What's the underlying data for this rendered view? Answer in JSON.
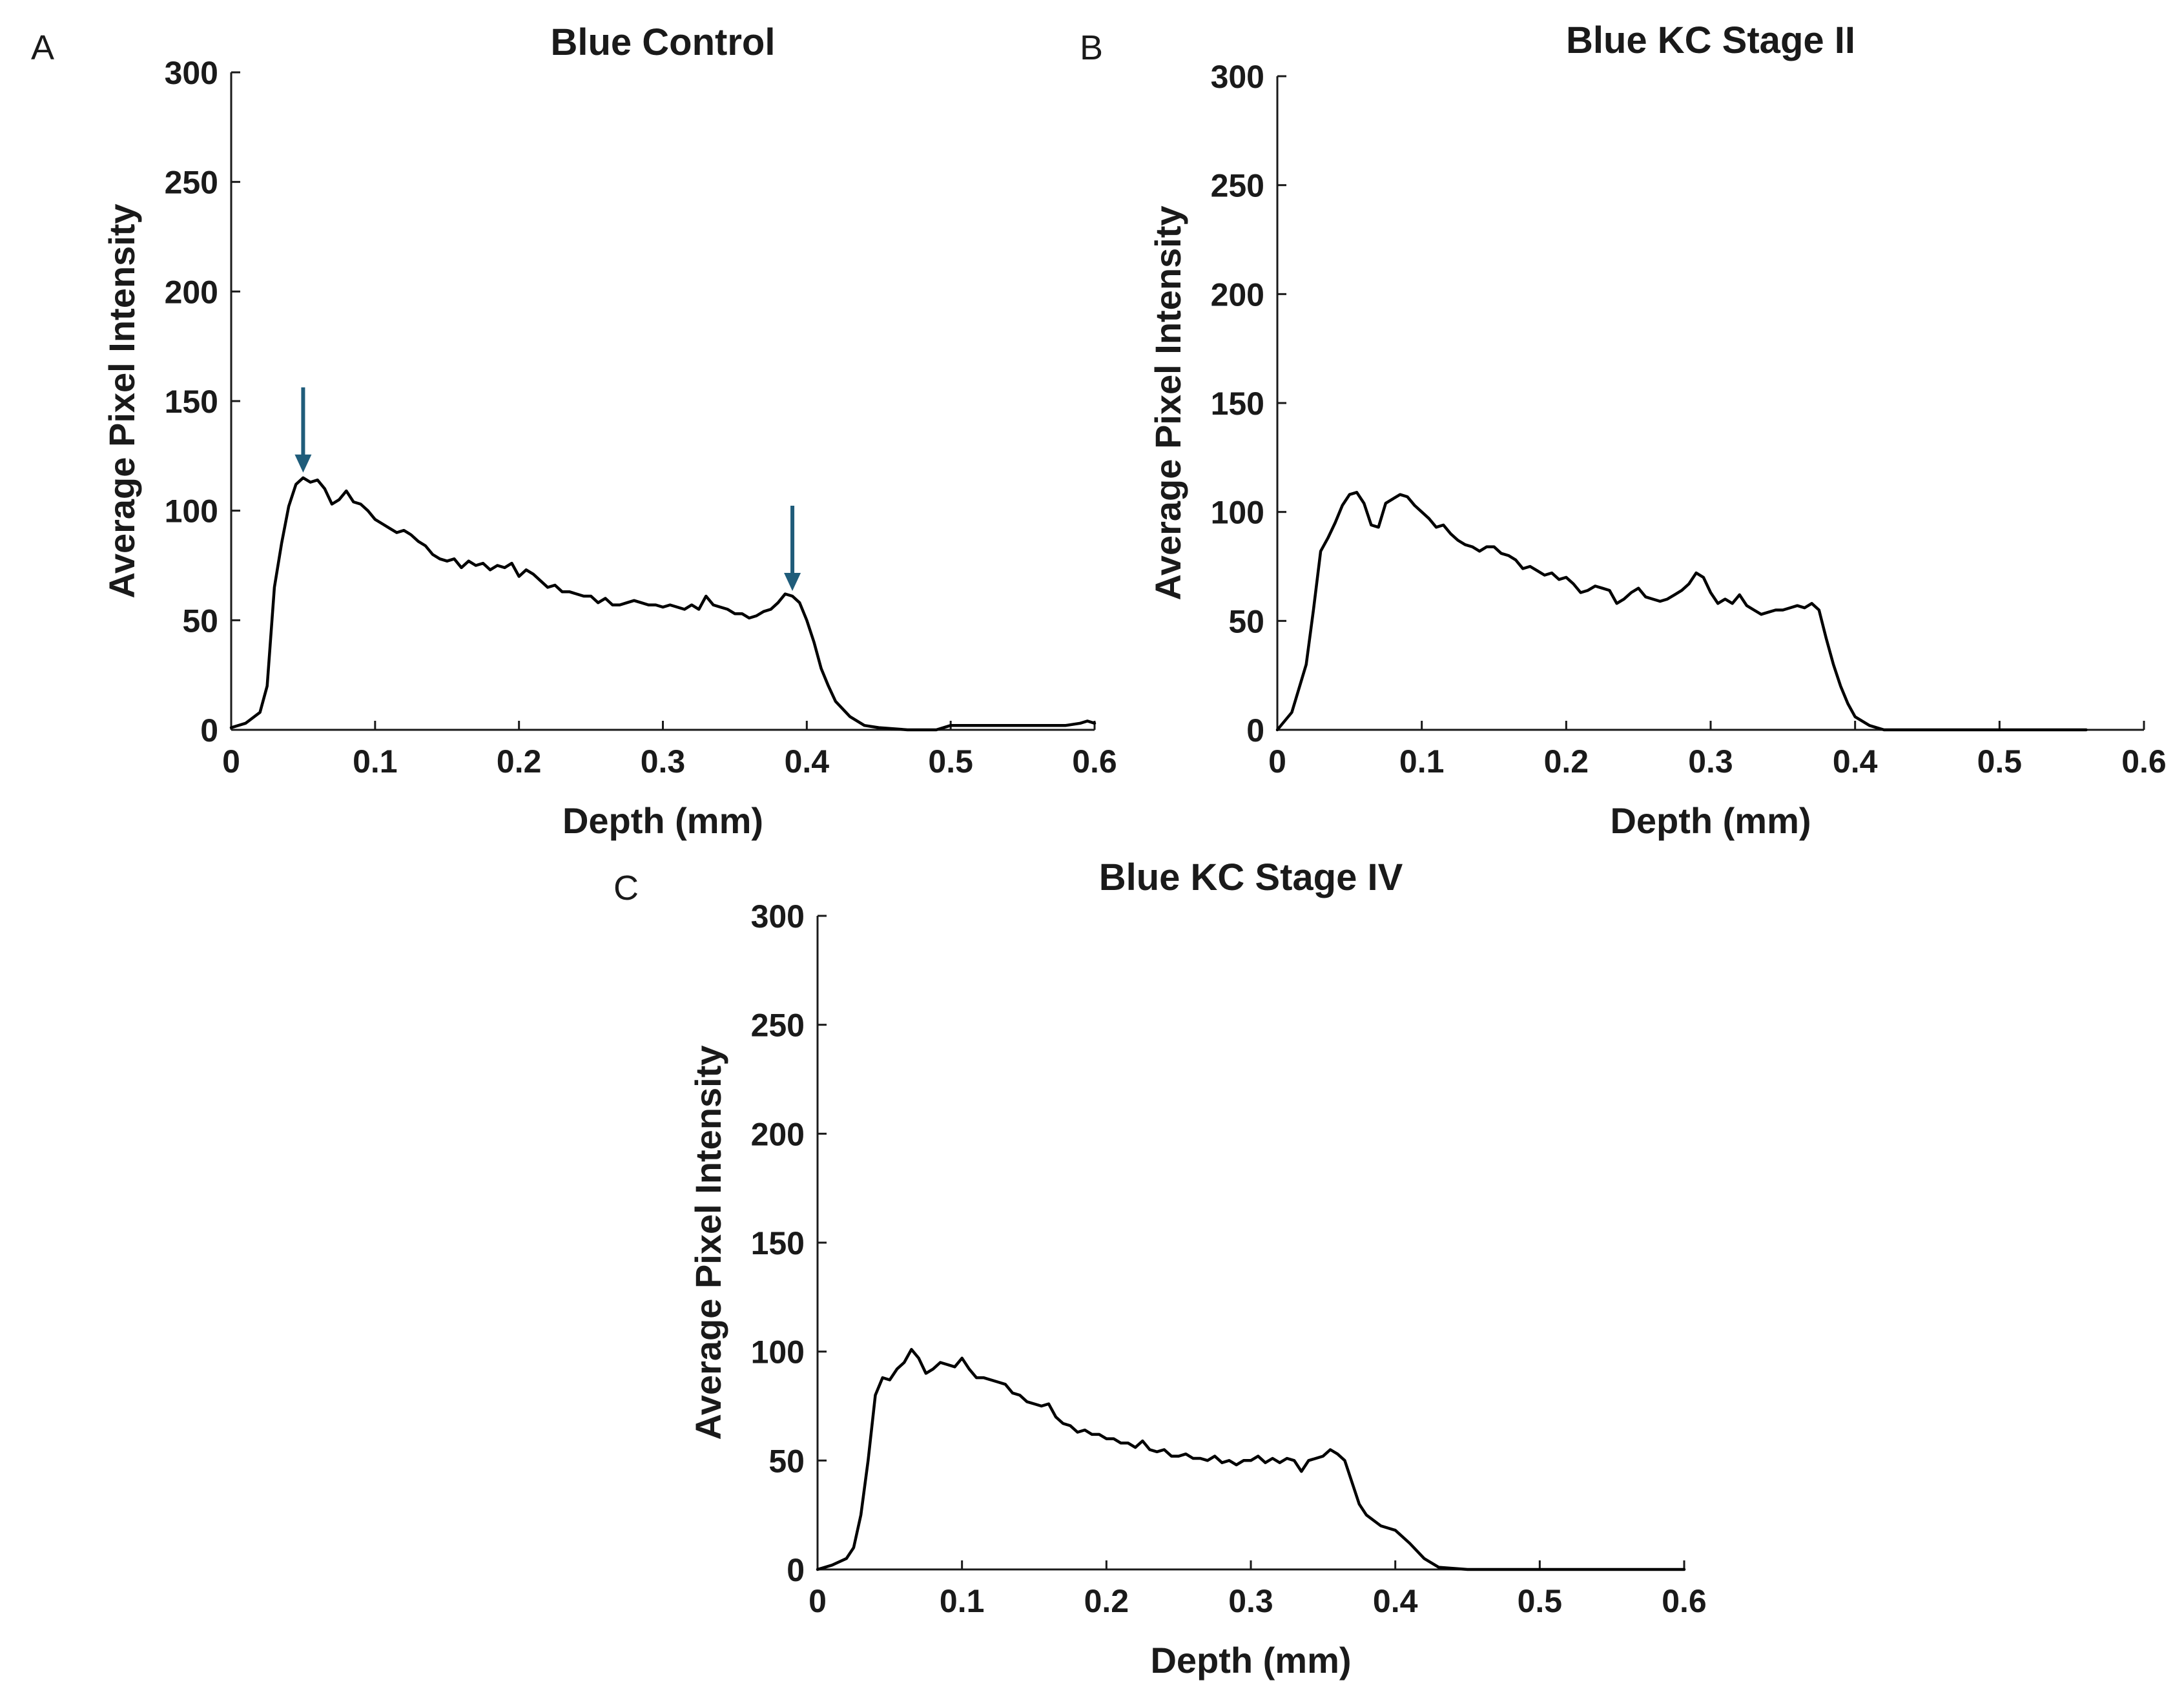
{
  "chart_data": [
    {
      "type": "line",
      "panel": "A",
      "title": "Blue Control",
      "xlabel": "Depth (mm)",
      "ylabel": "Average Pixel Intensity",
      "xlim": [
        0,
        0.6
      ],
      "ylim": [
        0,
        300
      ],
      "xticks": [
        "0",
        "0.1",
        "0.2",
        "0.3",
        "0.4",
        "0.5",
        "0.6"
      ],
      "yticks": [
        "0",
        "50",
        "100",
        "150",
        "200",
        "250",
        "300"
      ],
      "grid": false,
      "annotations": [
        {
          "type": "arrow",
          "x": 0.05,
          "y": 115,
          "color": "#1f5c7a"
        },
        {
          "type": "arrow",
          "x": 0.39,
          "y": 61,
          "color": "#1f5c7a"
        }
      ],
      "series": [
        {
          "x": [
            0,
            0.01,
            0.02,
            0.025,
            0.03,
            0.035,
            0.04,
            0.045,
            0.05,
            0.055,
            0.06,
            0.065,
            0.07,
            0.075,
            0.08,
            0.085,
            0.09,
            0.095,
            0.1,
            0.105,
            0.11,
            0.115,
            0.12,
            0.125,
            0.13,
            0.135,
            0.14,
            0.145,
            0.15,
            0.155,
            0.16,
            0.165,
            0.17,
            0.175,
            0.18,
            0.185,
            0.19,
            0.195,
            0.2,
            0.205,
            0.21,
            0.215,
            0.22,
            0.225,
            0.23,
            0.235,
            0.24,
            0.245,
            0.25,
            0.255,
            0.26,
            0.265,
            0.27,
            0.275,
            0.28,
            0.285,
            0.29,
            0.295,
            0.3,
            0.305,
            0.31,
            0.315,
            0.32,
            0.325,
            0.33,
            0.335,
            0.34,
            0.345,
            0.35,
            0.355,
            0.36,
            0.365,
            0.37,
            0.375,
            0.38,
            0.385,
            0.39,
            0.395,
            0.4,
            0.405,
            0.41,
            0.415,
            0.42,
            0.43,
            0.44,
            0.45,
            0.47,
            0.49,
            0.5,
            0.52,
            0.55,
            0.58,
            0.59,
            0.595,
            0.6
          ],
          "y": [
            1,
            3,
            8,
            20,
            65,
            85,
            102,
            112,
            115,
            113,
            114,
            110,
            103,
            105,
            109,
            104,
            103,
            100,
            96,
            94,
            92,
            90,
            91,
            89,
            86,
            84,
            80,
            78,
            77,
            78,
            74,
            77,
            75,
            76,
            73,
            75,
            74,
            76,
            70,
            73,
            71,
            68,
            65,
            66,
            63,
            63,
            62,
            61,
            61,
            58,
            60,
            57,
            57,
            58,
            59,
            58,
            57,
            57,
            56,
            57,
            56,
            55,
            57,
            55,
            61,
            57,
            56,
            55,
            53,
            53,
            51,
            52,
            54,
            55,
            58,
            62,
            61,
            58,
            50,
            40,
            28,
            20,
            13,
            6,
            2,
            1,
            0,
            0,
            2,
            2,
            2,
            2,
            3,
            4,
            3
          ]
        }
      ]
    },
    {
      "type": "line",
      "panel": "B",
      "title": "Blue KC Stage II",
      "xlabel": "Depth (mm)",
      "ylabel": "Average Pixel Intensity",
      "xlim": [
        0,
        0.6
      ],
      "ylim": [
        0,
        300
      ],
      "xticks": [
        "0",
        "0.1",
        "0.2",
        "0.3",
        "0.4",
        "0.5",
        "0.6"
      ],
      "yticks": [
        "0",
        "50",
        "100",
        "150",
        "200",
        "250",
        "300"
      ],
      "grid": false,
      "series": [
        {
          "x": [
            0,
            0.01,
            0.02,
            0.025,
            0.03,
            0.035,
            0.04,
            0.045,
            0.05,
            0.055,
            0.06,
            0.065,
            0.07,
            0.075,
            0.08,
            0.085,
            0.09,
            0.095,
            0.1,
            0.105,
            0.11,
            0.115,
            0.12,
            0.125,
            0.13,
            0.135,
            0.14,
            0.145,
            0.15,
            0.155,
            0.16,
            0.165,
            0.17,
            0.175,
            0.18,
            0.185,
            0.19,
            0.195,
            0.2,
            0.205,
            0.21,
            0.215,
            0.22,
            0.225,
            0.23,
            0.235,
            0.24,
            0.245,
            0.25,
            0.255,
            0.26,
            0.265,
            0.27,
            0.275,
            0.28,
            0.285,
            0.29,
            0.295,
            0.3,
            0.305,
            0.31,
            0.315,
            0.32,
            0.325,
            0.33,
            0.335,
            0.34,
            0.345,
            0.35,
            0.355,
            0.36,
            0.365,
            0.37,
            0.375,
            0.38,
            0.385,
            0.39,
            0.395,
            0.4,
            0.41,
            0.42,
            0.44,
            0.47,
            0.5,
            0.55,
            0.56
          ],
          "y": [
            0,
            8,
            30,
            55,
            82,
            88,
            95,
            103,
            108,
            109,
            104,
            94,
            93,
            104,
            106,
            108,
            107,
            103,
            100,
            97,
            93,
            94,
            90,
            87,
            85,
            84,
            82,
            84,
            84,
            81,
            80,
            78,
            74,
            75,
            73,
            71,
            72,
            69,
            70,
            67,
            63,
            64,
            66,
            65,
            64,
            58,
            60,
            63,
            65,
            61,
            60,
            59,
            60,
            62,
            64,
            67,
            72,
            70,
            63,
            58,
            60,
            58,
            62,
            57,
            55,
            53,
            54,
            55,
            55,
            56,
            57,
            56,
            58,
            55,
            42,
            30,
            20,
            12,
            6,
            2,
            0,
            0,
            0,
            0,
            0,
            0
          ]
        }
      ]
    },
    {
      "type": "line",
      "panel": "C",
      "title": "Blue KC Stage IV",
      "xlabel": "Depth (mm)",
      "ylabel": "Average Pixel Intensity",
      "xlim": [
        0,
        0.6
      ],
      "ylim": [
        0,
        300
      ],
      "xticks": [
        "0",
        "0.1",
        "0.2",
        "0.3",
        "0.4",
        "0.5",
        "0.6"
      ],
      "yticks": [
        "0",
        "50",
        "100",
        "150",
        "200",
        "250",
        "300"
      ],
      "grid": false,
      "series": [
        {
          "x": [
            0,
            0.01,
            0.02,
            0.025,
            0.03,
            0.035,
            0.04,
            0.045,
            0.05,
            0.055,
            0.06,
            0.065,
            0.07,
            0.075,
            0.08,
            0.085,
            0.09,
            0.095,
            0.1,
            0.105,
            0.11,
            0.115,
            0.12,
            0.125,
            0.13,
            0.135,
            0.14,
            0.145,
            0.15,
            0.155,
            0.16,
            0.165,
            0.17,
            0.175,
            0.18,
            0.185,
            0.19,
            0.195,
            0.2,
            0.205,
            0.21,
            0.215,
            0.22,
            0.225,
            0.23,
            0.235,
            0.24,
            0.245,
            0.25,
            0.255,
            0.26,
            0.265,
            0.27,
            0.275,
            0.28,
            0.285,
            0.29,
            0.295,
            0.3,
            0.305,
            0.31,
            0.315,
            0.32,
            0.325,
            0.33,
            0.335,
            0.34,
            0.345,
            0.35,
            0.355,
            0.36,
            0.365,
            0.37,
            0.375,
            0.38,
            0.39,
            0.4,
            0.41,
            0.42,
            0.43,
            0.45,
            0.5,
            0.55,
            0.6
          ],
          "y": [
            0,
            2,
            5,
            10,
            25,
            50,
            80,
            88,
            87,
            92,
            95,
            101,
            97,
            90,
            92,
            95,
            94,
            93,
            97,
            92,
            88,
            88,
            87,
            86,
            85,
            81,
            80,
            77,
            76,
            75,
            76,
            70,
            67,
            66,
            63,
            64,
            62,
            62,
            60,
            60,
            58,
            58,
            56,
            59,
            55,
            54,
            55,
            52,
            52,
            53,
            51,
            51,
            50,
            52,
            49,
            50,
            48,
            50,
            50,
            52,
            49,
            51,
            49,
            51,
            50,
            45,
            50,
            51,
            52,
            55,
            53,
            50,
            40,
            30,
            25,
            20,
            18,
            12,
            5,
            1,
            0,
            0,
            0,
            0
          ]
        }
      ]
    }
  ]
}
